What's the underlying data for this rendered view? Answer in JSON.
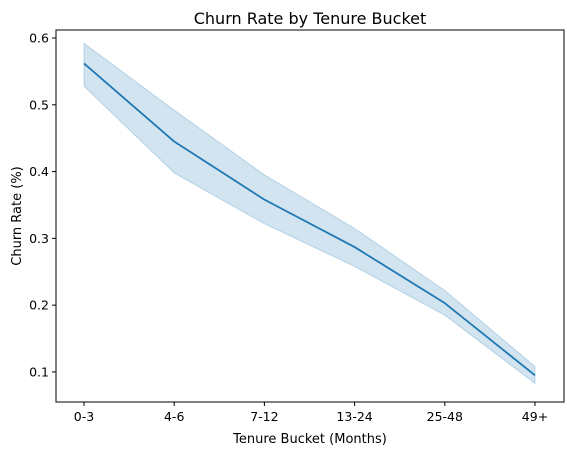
{
  "chart_data": {
    "type": "line",
    "title": "Churn Rate by Tenure Bucket",
    "xlabel": "Tenure Bucket (Months)",
    "ylabel": "Churn Rate (%)",
    "categories": [
      "0-3",
      "4-6",
      "7-12",
      "13-24",
      "25-48",
      "49+"
    ],
    "series": [
      {
        "values": [
          0.562,
          0.445,
          0.358,
          0.287,
          0.203,
          0.095
        ],
        "lower": [
          0.528,
          0.398,
          0.322,
          0.258,
          0.185,
          0.083
        ],
        "upper": [
          0.592,
          0.492,
          0.395,
          0.315,
          0.222,
          0.108
        ],
        "color": "#1f77b4",
        "band_color": "#1f77b4"
      }
    ],
    "ylim": [
      0.055,
      0.612
    ],
    "yticks": [
      0.1,
      0.2,
      0.3,
      0.4,
      0.5,
      0.6
    ],
    "ytick_labels": [
      "0.1",
      "0.2",
      "0.3",
      "0.4",
      "0.5",
      "0.6"
    ],
    "grid": false,
    "legend": "none"
  }
}
